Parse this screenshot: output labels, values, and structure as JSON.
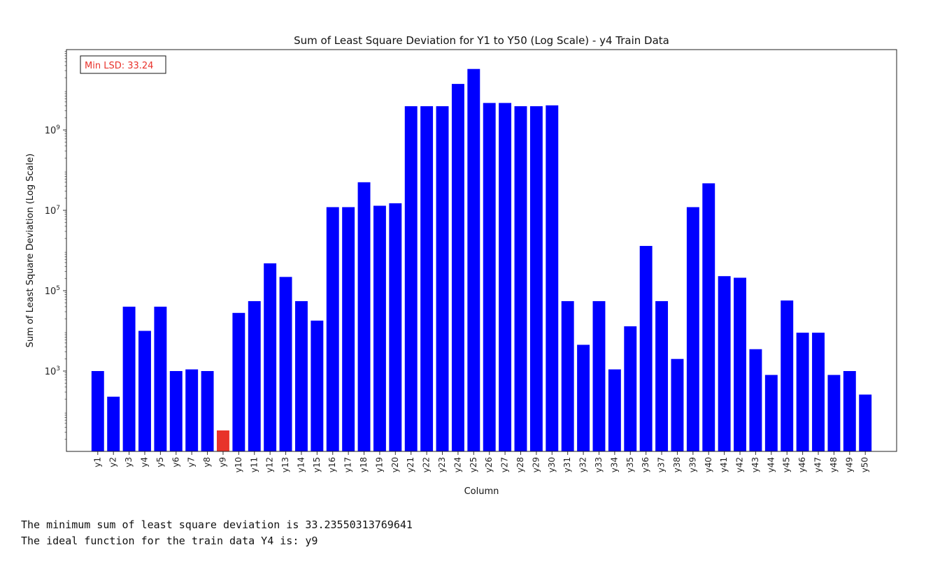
{
  "chart_data": {
    "type": "bar",
    "scale": "log",
    "title": "Sum of Least Square Deviation for Y1 to Y50 (Log Scale) - y4 Train Data",
    "xlabel": "Column",
    "ylabel": "Sum of Least Square Deviation (Log Scale)",
    "ylim": [
      10,
      100000000000
    ],
    "yticks": [
      {
        "value": 1000,
        "label": "10^3"
      },
      {
        "value": 100000,
        "label": "10^5"
      },
      {
        "value": 10000000,
        "label": "10^7"
      },
      {
        "value": 1000000000,
        "label": "10^9"
      }
    ],
    "annotation": {
      "text": "Min LSD: 33.24",
      "color": "#e8322b",
      "placement": "top-left"
    },
    "bar_color": "#0000ff",
    "highlight_color": "#e8332a",
    "highlight_category": "y9",
    "categories": [
      "y1",
      "y2",
      "y3",
      "y4",
      "y5",
      "y6",
      "y7",
      "y8",
      "y9",
      "y10",
      "y11",
      "y12",
      "y13",
      "y14",
      "y15",
      "y16",
      "y17",
      "y18",
      "y19",
      "y20",
      "y21",
      "y22",
      "y23",
      "y24",
      "y25",
      "y26",
      "y27",
      "y28",
      "y29",
      "y30",
      "y31",
      "y32",
      "y33",
      "y34",
      "y35",
      "y36",
      "y37",
      "y38",
      "y39",
      "y40",
      "y41",
      "y42",
      "y43",
      "y44",
      "y45",
      "y46",
      "y47",
      "y48",
      "y49",
      "y50"
    ],
    "values": [
      1000,
      230,
      40000,
      10000,
      40000,
      1000,
      1100,
      1000,
      33.24,
      28000,
      55000,
      480000,
      220000,
      55000,
      18000,
      12000000,
      12000000,
      50000000,
      13000000,
      15000000,
      3900000000,
      3900000000,
      3900000000,
      14000000000,
      33000000000,
      4700000000,
      4700000000,
      3900000000,
      3900000000,
      4100000000,
      55000,
      4500,
      55000,
      1100,
      13000,
      1300000,
      55000,
      2000,
      12000000,
      47000000,
      230000,
      210000,
      3500,
      800,
      57000,
      9000,
      9000,
      800,
      1000,
      260
    ]
  },
  "output": {
    "line1": "The minimum sum of least square deviation is 33.23550313769641",
    "line2": "The ideal function for the train data Y4 is: y9"
  }
}
